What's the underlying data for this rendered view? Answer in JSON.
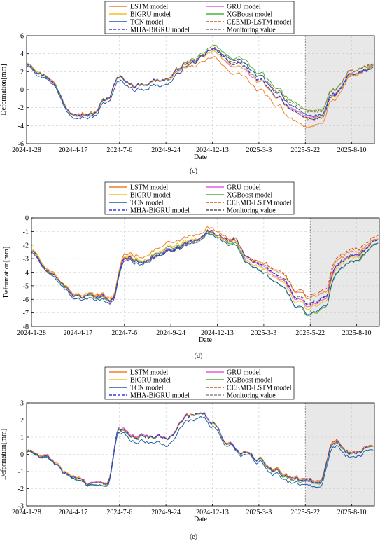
{
  "chart_data": [
    {
      "type": "line",
      "caption": "(c)",
      "xlabel": "Date",
      "ylabel": "Deformation[mm]",
      "x_ticks": [
        "2024-1-28",
        "2024-4-17",
        "2024-7-6",
        "2024-9-24",
        "2024-12-13",
        "2025-3-3",
        "2025-5-22",
        "2025-8-10"
      ],
      "x_range": [
        "2024-1-28",
        "2025-9-18"
      ],
      "ylim": [
        -6,
        6
      ],
      "y_ticks": [
        -6,
        -4,
        -2,
        0,
        2,
        4,
        6
      ],
      "forecast_start": "2025-5-22",
      "grid": true,
      "legend_position": "top-center",
      "truth": {
        "x": [
          "2024-1-28",
          "2024-3-1",
          "2024-4-17",
          "2024-5-20",
          "2024-6-15",
          "2024-7-6",
          "2024-8-1",
          "2024-9-24",
          "2024-11-1",
          "2024-11-25",
          "2024-12-13",
          "2025-1-10",
          "2025-2-1",
          "2025-3-3",
          "2025-4-1",
          "2025-5-1",
          "2025-5-22",
          "2025-6-15",
          "2025-7-10",
          "2025-8-10",
          "2025-9-18"
        ],
        "y": [
          3.0,
          1.5,
          -2.5,
          -2.8,
          -1.0,
          1.3,
          0.5,
          1.2,
          3.0,
          3.5,
          4.5,
          3.2,
          2.8,
          1.0,
          -0.6,
          -2.2,
          -3.5,
          -3.2,
          -0.8,
          1.6,
          2.4
        ]
      },
      "series": [
        {
          "name": "LSTM model",
          "color": "#f07f28",
          "dash": "solid",
          "offset": [
            0.15,
            0.15,
            -0.1,
            -1.2,
            -0.9,
            0.2
          ]
        },
        {
          "name": "GRU model",
          "color": "#e05ee0",
          "dash": "solid",
          "offset": [
            -0.1,
            0.0,
            0.05,
            -0.4,
            0.3,
            0.1
          ]
        },
        {
          "name": "BiGRU model",
          "color": "#f5c020",
          "dash": "solid",
          "offset": [
            0.1,
            0.1,
            0.0,
            -0.3,
            0.1,
            0.0
          ]
        },
        {
          "name": "XGBoost model",
          "color": "#4caf3c",
          "dash": "solid",
          "offset": [
            0.0,
            0.1,
            -0.05,
            0.6,
            1.1,
            0.2
          ]
        },
        {
          "name": "TCN model",
          "color": "#1f5fa8",
          "dash": "solid",
          "offset": [
            -0.2,
            -0.3,
            -0.6,
            0.4,
            0.5,
            -0.1
          ]
        },
        {
          "name": "CEEMD-LSTM model",
          "color": "#c8501e",
          "dash": "dashed",
          "offset": [
            0.0,
            0.0,
            0.0,
            0.2,
            0.9,
            0.3
          ]
        },
        {
          "name": "MHA-BiGRU model",
          "color": "#3a3ad6",
          "dash": "dashed",
          "offset": [
            0.05,
            0.05,
            0.0,
            0.0,
            0.05,
            0.0
          ]
        },
        {
          "name": "Monitoring value",
          "color": "#7a7a7a",
          "dash": "dashed",
          "offset": [
            0,
            0,
            0,
            0,
            0,
            0
          ]
        }
      ]
    },
    {
      "type": "line",
      "caption": "(d)",
      "xlabel": "Date",
      "ylabel": "Deformation[mm]",
      "x_ticks": [
        "2024-1-28",
        "2024-4-17",
        "2024-7-6",
        "2024-9-24",
        "2024-12-13",
        "2025-3-3",
        "2025-5-22",
        "2025-8-10"
      ],
      "x_range": [
        "2024-1-28",
        "2025-9-18"
      ],
      "ylim": [
        -8,
        0
      ],
      "y_ticks": [
        -8,
        -7,
        -6,
        -5,
        -4,
        -3,
        -2,
        -1,
        0
      ],
      "forecast_start": "2025-5-22",
      "grid": true,
      "legend_position": "top-center",
      "truth": {
        "x": [
          "2024-1-28",
          "2024-3-1",
          "2024-4-17",
          "2024-5-20",
          "2024-6-15",
          "2024-7-6",
          "2024-8-1",
          "2024-9-24",
          "2024-11-1",
          "2024-11-25",
          "2024-12-13",
          "2025-1-10",
          "2025-2-1",
          "2025-3-3",
          "2025-4-1",
          "2025-5-1",
          "2025-5-22",
          "2025-6-15",
          "2025-7-10",
          "2025-8-10",
          "2025-9-18"
        ],
        "y": [
          -2.5,
          -4.2,
          -5.8,
          -5.9,
          -6.0,
          -3.0,
          -3.2,
          -2.5,
          -1.8,
          -1.0,
          -1.2,
          -1.6,
          -2.8,
          -3.6,
          -4.4,
          -5.8,
          -6.4,
          -5.8,
          -3.2,
          -2.6,
          -1.6
        ]
      },
      "series": [
        {
          "name": "LSTM model",
          "color": "#f07f28",
          "dash": "solid",
          "offset": [
            0.1,
            0.2,
            0.6,
            0.0,
            0.4,
            0.1
          ]
        },
        {
          "name": "GRU model",
          "color": "#e05ee0",
          "dash": "solid",
          "offset": [
            0.0,
            0.0,
            0.1,
            -0.1,
            -0.2,
            0.0
          ]
        },
        {
          "name": "BiGRU model",
          "color": "#f5c020",
          "dash": "solid",
          "offset": [
            0.1,
            0.1,
            0.3,
            -0.2,
            -0.4,
            0.0
          ]
        },
        {
          "name": "XGBoost model",
          "color": "#4caf3c",
          "dash": "solid",
          "offset": [
            0.0,
            0.0,
            0.2,
            -0.3,
            -0.9,
            -0.2
          ]
        },
        {
          "name": "TCN model",
          "color": "#1f5fa8",
          "dash": "solid",
          "offset": [
            -0.1,
            -0.2,
            0.0,
            -0.4,
            -0.8,
            -0.2
          ]
        },
        {
          "name": "CEEMD-LSTM model",
          "color": "#c8501e",
          "dash": "dashed",
          "offset": [
            0.0,
            0.1,
            0.0,
            0.0,
            0.6,
            0.3
          ]
        },
        {
          "name": "MHA-BiGRU model",
          "color": "#3a3ad6",
          "dash": "dashed",
          "offset": [
            0.0,
            0.05,
            0.05,
            0.0,
            -0.1,
            0.0
          ]
        },
        {
          "name": "Monitoring value",
          "color": "#555555",
          "dash": "dashed",
          "offset": [
            0,
            0,
            0,
            0,
            0,
            0
          ]
        }
      ]
    },
    {
      "type": "line",
      "caption": "(e)",
      "xlabel": "Date",
      "ylabel": "Deformation[mm]",
      "x_ticks": [
        "2024-1-28",
        "2024-4-17",
        "2024-7-6",
        "2024-9-24",
        "2024-12-13",
        "2025-3-3",
        "2025-5-22",
        "2025-8-10"
      ],
      "x_range": [
        "2024-1-28",
        "2025-9-18"
      ],
      "ylim": [
        -3,
        3
      ],
      "y_ticks": [
        -3,
        -2,
        -1,
        0,
        1,
        2,
        3
      ],
      "forecast_start": "2025-5-22",
      "grid": true,
      "legend_position": "top-center",
      "truth": {
        "x": [
          "2024-1-28",
          "2024-3-1",
          "2024-4-17",
          "2024-5-20",
          "2024-6-15",
          "2024-7-6",
          "2024-8-1",
          "2024-9-24",
          "2024-11-1",
          "2024-11-25",
          "2024-12-13",
          "2025-1-10",
          "2025-2-1",
          "2025-3-3",
          "2025-4-1",
          "2025-5-1",
          "2025-5-22",
          "2025-6-15",
          "2025-7-10",
          "2025-8-10",
          "2025-9-18"
        ],
        "y": [
          0.2,
          -0.2,
          -1.3,
          -1.8,
          -1.6,
          1.4,
          1.1,
          1.0,
          2.2,
          2.5,
          1.8,
          0.6,
          0.1,
          -0.3,
          -1.0,
          -1.4,
          -1.5,
          -1.6,
          0.8,
          0.0,
          0.6
        ]
      },
      "series": [
        {
          "name": "LSTM model",
          "color": "#f07f28",
          "dash": "solid",
          "offset": [
            0.05,
            0.05,
            0.0,
            0.0,
            0.1,
            0.0
          ]
        },
        {
          "name": "GRU model",
          "color": "#e05ee0",
          "dash": "solid",
          "offset": [
            0.0,
            0.05,
            0.05,
            0.0,
            0.0,
            0.05
          ]
        },
        {
          "name": "BiGRU model",
          "color": "#f5c020",
          "dash": "solid",
          "offset": [
            0.05,
            0.0,
            0.0,
            0.0,
            0.05,
            0.0
          ]
        },
        {
          "name": "XGBoost model",
          "color": "#4caf3c",
          "dash": "solid",
          "offset": [
            -0.05,
            -0.1,
            0.0,
            0.0,
            -0.1,
            0.0
          ]
        },
        {
          "name": "TCN model",
          "color": "#1f5fa8",
          "dash": "solid",
          "offset": [
            0.0,
            -0.1,
            -0.4,
            -0.1,
            -0.3,
            -0.2
          ]
        },
        {
          "name": "CEEMD-LSTM model",
          "color": "#c8501e",
          "dash": "dashed",
          "offset": [
            0.0,
            0.0,
            0.0,
            0.0,
            0.1,
            0.05
          ]
        },
        {
          "name": "MHA-BiGRU model",
          "color": "#3a3ad6",
          "dash": "dashed",
          "offset": [
            0.0,
            0.0,
            0.0,
            0.0,
            0.0,
            0.0
          ]
        },
        {
          "name": "Monitoring value",
          "color": "#8a8a8a",
          "dash": "dashed",
          "offset": [
            0,
            0,
            0,
            0,
            0,
            0
          ]
        }
      ]
    }
  ]
}
